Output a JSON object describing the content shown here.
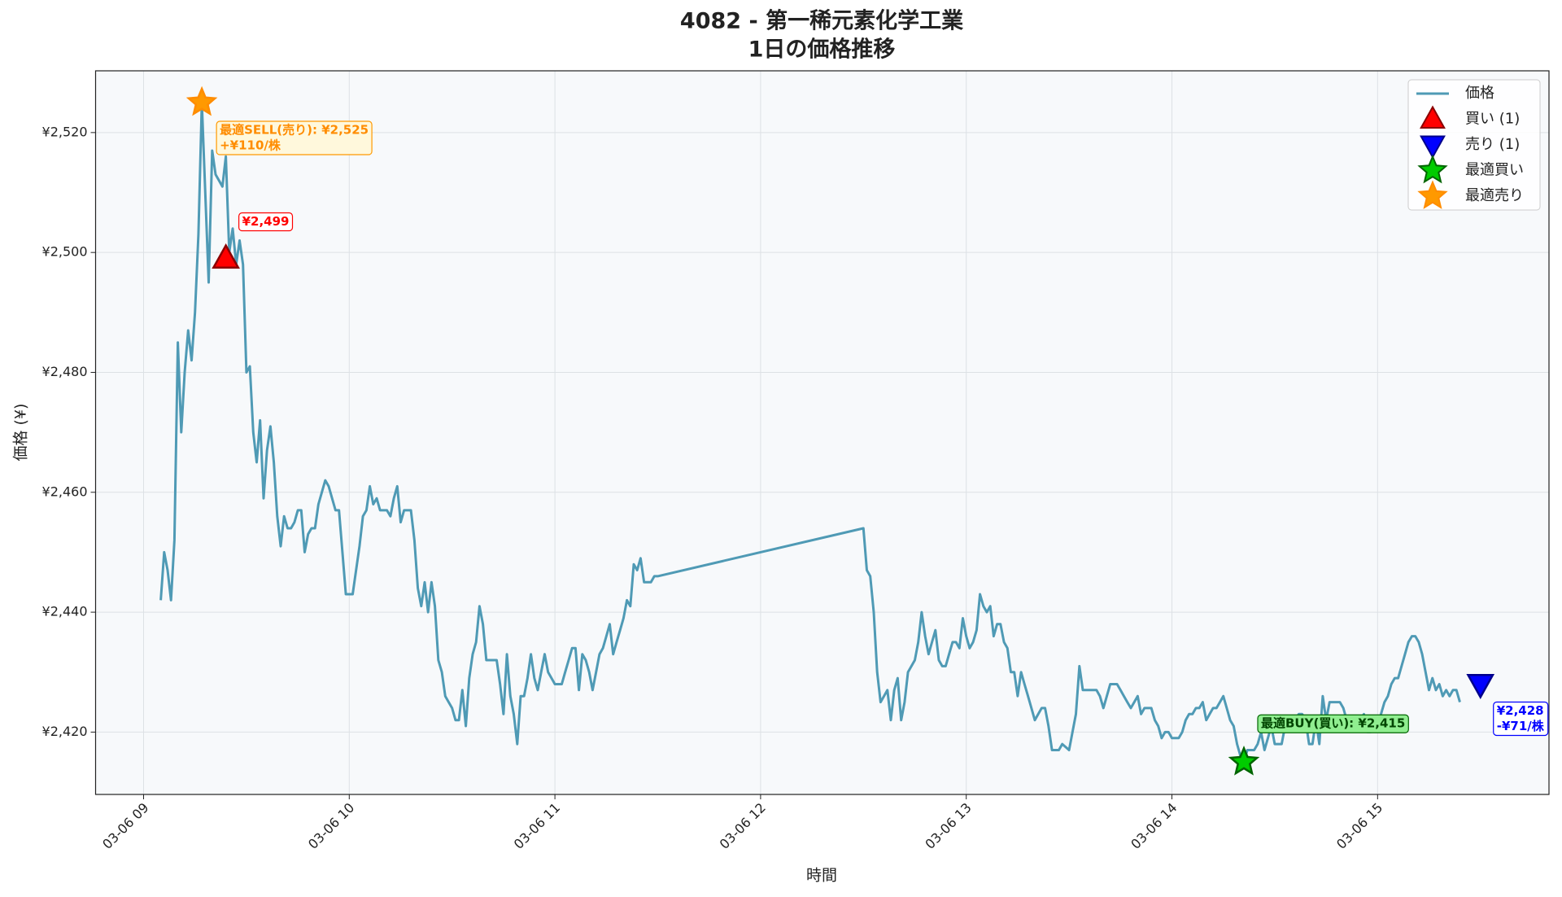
{
  "chart_data": {
    "type": "line",
    "title": [
      "4082 - 第一稀元素化学工業",
      "1日の価格推移"
    ],
    "xlabel": "時間",
    "ylabel": "価格 (¥)",
    "xlim": [
      "03-06 08:46",
      "03-06 15:50"
    ],
    "xticks": [
      "03-06 09",
      "03-06 10",
      "03-06 11",
      "03-06 12",
      "03-06 13",
      "03-06 14",
      "03-06 15"
    ],
    "ylim": [
      2409.6,
      2530.3
    ],
    "yticks": [
      {
        "value": 2420,
        "label": "¥2,420"
      },
      {
        "value": 2440,
        "label": "¥2,440"
      },
      {
        "value": 2460,
        "label": "¥2,460"
      },
      {
        "value": 2480,
        "label": "¥2,480"
      },
      {
        "value": 2500,
        "label": "¥2,500"
      },
      {
        "value": 2520,
        "label": "¥2,520"
      }
    ],
    "grid": true,
    "legend": "upper right",
    "x": [
      "03-06 09:05",
      "03-06 09:06",
      "03-06 09:07",
      "03-06 09:08",
      "03-06 09:09",
      "03-06 09:10",
      "03-06 09:11",
      "03-06 09:12",
      "03-06 09:13",
      "03-06 09:14",
      "03-06 09:15",
      "03-06 09:16",
      "03-06 09:17",
      "03-06 09:18",
      "03-06 09:19",
      "03-06 09:20",
      "03-06 09:21",
      "03-06 09:22",
      "03-06 09:23",
      "03-06 09:24",
      "03-06 09:25",
      "03-06 09:26",
      "03-06 09:27",
      "03-06 09:28",
      "03-06 09:29",
      "03-06 09:30",
      "03-06 09:31",
      "03-06 09:32",
      "03-06 09:33",
      "03-06 09:34",
      "03-06 09:35",
      "03-06 09:36",
      "03-06 09:37",
      "03-06 09:38",
      "03-06 09:39",
      "03-06 09:40",
      "03-06 09:41",
      "03-06 09:42",
      "03-06 09:43",
      "03-06 09:44",
      "03-06 09:45",
      "03-06 09:46",
      "03-06 09:47",
      "03-06 09:48",
      "03-06 09:49",
      "03-06 09:50",
      "03-06 09:51",
      "03-06 09:52",
      "03-06 09:53",
      "03-06 09:54",
      "03-06 09:55",
      "03-06 09:56",
      "03-06 09:57",
      "03-06 09:58",
      "03-06 09:59",
      "03-06 10:00",
      "03-06 10:01",
      "03-06 10:02",
      "03-06 10:03",
      "03-06 10:04",
      "03-06 10:05",
      "03-06 10:06",
      "03-06 10:07",
      "03-06 10:08",
      "03-06 10:09",
      "03-06 10:10",
      "03-06 10:11",
      "03-06 10:12",
      "03-06 10:13",
      "03-06 10:14",
      "03-06 10:15",
      "03-06 10:16",
      "03-06 10:17",
      "03-06 10:18",
      "03-06 10:19",
      "03-06 10:20",
      "03-06 10:21",
      "03-06 10:22",
      "03-06 10:23",
      "03-06 10:24",
      "03-06 10:25",
      "03-06 10:26",
      "03-06 10:27",
      "03-06 10:28",
      "03-06 10:29",
      "03-06 10:30",
      "03-06 10:31",
      "03-06 10:32",
      "03-06 10:33",
      "03-06 10:34",
      "03-06 10:35",
      "03-06 10:36",
      "03-06 10:37",
      "03-06 10:38",
      "03-06 10:39",
      "03-06 10:40",
      "03-06 10:41",
      "03-06 10:42",
      "03-06 10:43",
      "03-06 10:44",
      "03-06 10:45",
      "03-06 10:46",
      "03-06 10:47",
      "03-06 10:48",
      "03-06 10:49",
      "03-06 10:50",
      "03-06 10:51",
      "03-06 10:52",
      "03-06 10:53",
      "03-06 10:54",
      "03-06 10:55",
      "03-06 10:56",
      "03-06 10:57",
      "03-06 10:58",
      "03-06 10:59",
      "03-06 11:00",
      "03-06 11:01",
      "03-06 11:02",
      "03-06 11:03",
      "03-06 11:04",
      "03-06 11:05",
      "03-06 11:06",
      "03-06 11:07",
      "03-06 11:08",
      "03-06 11:09",
      "03-06 11:10",
      "03-06 11:11",
      "03-06 11:12",
      "03-06 11:13",
      "03-06 11:14",
      "03-06 11:15",
      "03-06 11:16",
      "03-06 11:17",
      "03-06 11:18",
      "03-06 11:19",
      "03-06 11:20",
      "03-06 11:21",
      "03-06 11:22",
      "03-06 11:23",
      "03-06 11:24",
      "03-06 11:25",
      "03-06 11:26",
      "03-06 11:27",
      "03-06 11:28",
      "03-06 11:29",
      "03-06 11:30",
      "03-06 12:30",
      "03-06 12:31",
      "03-06 12:32",
      "03-06 12:33",
      "03-06 12:34",
      "03-06 12:35",
      "03-06 12:36",
      "03-06 12:37",
      "03-06 12:38",
      "03-06 12:39",
      "03-06 12:40",
      "03-06 12:41",
      "03-06 12:42",
      "03-06 12:43",
      "03-06 12:44",
      "03-06 12:45",
      "03-06 12:46",
      "03-06 12:47",
      "03-06 12:48",
      "03-06 12:49",
      "03-06 12:50",
      "03-06 12:51",
      "03-06 12:52",
      "03-06 12:53",
      "03-06 12:54",
      "03-06 12:55",
      "03-06 12:56",
      "03-06 12:57",
      "03-06 12:58",
      "03-06 12:59",
      "03-06 13:00",
      "03-06 13:01",
      "03-06 13:02",
      "03-06 13:03",
      "03-06 13:04",
      "03-06 13:05",
      "03-06 13:06",
      "03-06 13:07",
      "03-06 13:08",
      "03-06 13:09",
      "03-06 13:10",
      "03-06 13:11",
      "03-06 13:12",
      "03-06 13:13",
      "03-06 13:14",
      "03-06 13:15",
      "03-06 13:16",
      "03-06 13:17",
      "03-06 13:18",
      "03-06 13:19",
      "03-06 13:20",
      "03-06 13:21",
      "03-06 13:22",
      "03-06 13:23",
      "03-06 13:24",
      "03-06 13:25",
      "03-06 13:26",
      "03-06 13:27",
      "03-06 13:28",
      "03-06 13:29",
      "03-06 13:30",
      "03-06 13:31",
      "03-06 13:32",
      "03-06 13:33",
      "03-06 13:34",
      "03-06 13:35",
      "03-06 13:36",
      "03-06 13:37",
      "03-06 13:38",
      "03-06 13:39",
      "03-06 13:40",
      "03-06 13:41",
      "03-06 13:42",
      "03-06 13:43",
      "03-06 13:44",
      "03-06 13:45",
      "03-06 13:46",
      "03-06 13:47",
      "03-06 13:48",
      "03-06 13:49",
      "03-06 13:50",
      "03-06 13:51",
      "03-06 13:52",
      "03-06 13:53",
      "03-06 13:54",
      "03-06 13:55",
      "03-06 13:56",
      "03-06 13:57",
      "03-06 13:58",
      "03-06 13:59",
      "03-06 14:00",
      "03-06 14:01",
      "03-06 14:02",
      "03-06 14:03",
      "03-06 14:04",
      "03-06 14:05",
      "03-06 14:06",
      "03-06 14:07",
      "03-06 14:08",
      "03-06 14:09",
      "03-06 14:10",
      "03-06 14:11",
      "03-06 14:12",
      "03-06 14:13",
      "03-06 14:14",
      "03-06 14:15",
      "03-06 14:16",
      "03-06 14:17",
      "03-06 14:18",
      "03-06 14:19",
      "03-06 14:20",
      "03-06 14:21",
      "03-06 14:22",
      "03-06 14:23",
      "03-06 14:24",
      "03-06 14:25",
      "03-06 14:26",
      "03-06 14:27",
      "03-06 14:28",
      "03-06 14:29",
      "03-06 14:30",
      "03-06 14:31",
      "03-06 14:32",
      "03-06 14:33",
      "03-06 14:34",
      "03-06 14:35",
      "03-06 14:36",
      "03-06 14:37",
      "03-06 14:38",
      "03-06 14:39",
      "03-06 14:40",
      "03-06 14:41",
      "03-06 14:42",
      "03-06 14:43",
      "03-06 14:44",
      "03-06 14:45",
      "03-06 14:46",
      "03-06 14:47",
      "03-06 14:48",
      "03-06 14:49",
      "03-06 14:50",
      "03-06 14:51",
      "03-06 14:52",
      "03-06 14:53",
      "03-06 14:54",
      "03-06 14:55",
      "03-06 14:56",
      "03-06 14:57",
      "03-06 14:58",
      "03-06 14:59",
      "03-06 15:00",
      "03-06 15:01",
      "03-06 15:02",
      "03-06 15:03",
      "03-06 15:04",
      "03-06 15:05",
      "03-06 15:06",
      "03-06 15:07",
      "03-06 15:08",
      "03-06 15:09",
      "03-06 15:10",
      "03-06 15:11",
      "03-06 15:12",
      "03-06 15:13",
      "03-06 15:14",
      "03-06 15:15",
      "03-06 15:16",
      "03-06 15:17",
      "03-06 15:18",
      "03-06 15:19",
      "03-06 15:20",
      "03-06 15:21",
      "03-06 15:22",
      "03-06 15:23",
      "03-06 15:24"
    ],
    "series": [
      {
        "name": "価格",
        "color": "#4f9ab5",
        "values": [
          2442,
          2450,
          2447,
          2442,
          2452,
          2485,
          2470,
          2480,
          2487,
          2482,
          2490,
          2503,
          2525,
          2510,
          2495,
          2517,
          2513,
          2512,
          2511,
          2516,
          2500,
          2504,
          2498,
          2502,
          2498,
          2480,
          2481,
          2470,
          2465,
          2472,
          2459,
          2467,
          2471,
          2465,
          2456,
          2451,
          2456,
          2454,
          2454,
          2455,
          2457,
          2457,
          2450,
          2453,
          2454,
          2454,
          2458,
          2460,
          2462,
          2461,
          2459,
          2457,
          2457,
          2450,
          2443,
          2443,
          2443,
          2447,
          2451,
          2456,
          2457,
          2461,
          2458,
          2459,
          2457,
          2457,
          2457,
          2456,
          2459,
          2461,
          2455,
          2457,
          2457,
          2457,
          2452,
          2444,
          2441,
          2445,
          2440,
          2445,
          2441,
          2432,
          2430,
          2426,
          2425,
          2424,
          2422,
          2422,
          2427,
          2421,
          2429,
          2433,
          2435,
          2441,
          2438,
          2432,
          2432,
          2432,
          2432,
          2428,
          2423,
          2433,
          2426,
          2423,
          2418,
          2426,
          2426,
          2429,
          2433,
          2429,
          2427,
          2430,
          2433,
          2430,
          2429,
          2428,
          2428,
          2428,
          2430,
          2432,
          2434,
          2434,
          2427,
          2433,
          2432,
          2430,
          2427,
          2430,
          2433,
          2434,
          2436,
          2438,
          2433,
          2435,
          2437,
          2439,
          2442,
          2441,
          2448,
          2447,
          2449,
          2445,
          2445,
          2445,
          2446,
          2446,
          2454,
          2447,
          2446,
          2440,
          2430,
          2425,
          2426,
          2427,
          2422,
          2427,
          2429,
          2422,
          2425,
          2430,
          2431,
          2432,
          2435,
          2440,
          2436,
          2433,
          2435,
          2437,
          2432,
          2431,
          2431,
          2433,
          2435,
          2435,
          2434,
          2439,
          2436,
          2434,
          2435,
          2437,
          2443,
          2441,
          2440,
          2441,
          2436,
          2438,
          2438,
          2435,
          2434,
          2430,
          2430,
          2426,
          2430,
          2428,
          2426,
          2424,
          2422,
          2423,
          2424,
          2424,
          2421,
          2417,
          2417,
          2417,
          2418,
          2417.5,
          2417,
          2420,
          2423,
          2431,
          2427,
          2427,
          2427,
          2427,
          2427,
          2426,
          2424,
          2426,
          2428,
          2428,
          2428,
          2427,
          2426,
          2425,
          2424,
          2425,
          2426,
          2423,
          2424,
          2424,
          2424,
          2422,
          2421,
          2419,
          2420,
          2420,
          2419,
          2419,
          2419,
          2420,
          2422,
          2423,
          2423,
          2424,
          2424,
          2425,
          2422,
          2423,
          2424,
          2424,
          2425,
          2426,
          2424,
          2422,
          2421,
          2418,
          2416,
          2415,
          2417,
          2417,
          2417,
          2418,
          2420,
          2417,
          2419,
          2421,
          2418,
          2418,
          2418,
          2421,
          2421,
          2422,
          2422,
          2423,
          2423,
          2422,
          2418,
          2418,
          2422,
          2418,
          2426,
          2422,
          2425,
          2425,
          2425,
          2425,
          2424,
          2422,
          2422,
          2421,
          2421,
          2422,
          2423,
          2420,
          2420,
          2422,
          2421,
          2423,
          2425,
          2426,
          2428,
          2429,
          2429,
          2431,
          2433,
          2435,
          2436,
          2436,
          2435,
          2433,
          2430,
          2427,
          2429,
          2427,
          2428,
          2426,
          2427,
          2426,
          2427,
          2427,
          2425
        ]
      }
    ],
    "markers": [
      {
        "name": "買い (1)",
        "shape": "triangle-up",
        "color": "#ff0000",
        "x": "03-06 09:24",
        "value": 2499,
        "label": "¥2,499"
      },
      {
        "name": "売り (1)",
        "shape": "triangle-down",
        "color": "#0000ff",
        "x": "03-06 15:30",
        "value": 2428,
        "label": "¥2,428",
        "note": "-¥71/株"
      },
      {
        "name": "最適買い",
        "shape": "star",
        "color": "#00cc00",
        "x": "03-06 14:21",
        "value": 2415,
        "label": "最適BUY(買い): ¥2,415"
      },
      {
        "name": "最適売り",
        "shape": "star",
        "color": "#ff9900",
        "x": "03-06 09:17",
        "value": 2525,
        "label": "最適SELL(売り): ¥2,525",
        "note": "+¥110/株"
      }
    ]
  }
}
